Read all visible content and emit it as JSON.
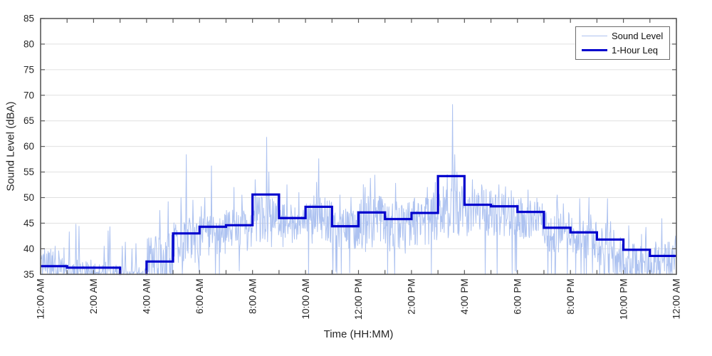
{
  "chart_data": {
    "type": "line",
    "title": "",
    "xlabel": "Time (HH:MM)",
    "ylabel": "Sound Level (dBA)",
    "ylim": [
      35,
      85
    ],
    "y_ticks": [
      35,
      40,
      45,
      50,
      55,
      60,
      65,
      70,
      75,
      80,
      85
    ],
    "xlim_hours": [
      0,
      24
    ],
    "x_tick_hours": [
      0,
      2,
      4,
      6,
      8,
      10,
      12,
      14,
      16,
      18,
      20,
      22,
      24
    ],
    "x_tick_labels": [
      "12:00 AM",
      "2:00 AM",
      "4:00 AM",
      "6:00 AM",
      "8:00 AM",
      "10:00 AM",
      "12:00 PM",
      "2:00 PM",
      "4:00 PM",
      "6:00 PM",
      "8:00 PM",
      "10:00 PM",
      "12:00 AM"
    ],
    "x_minor_tick_every_hours": 1,
    "grid": "horizontal",
    "colors": {
      "grid": "#e0e0e0",
      "axis": "#595959",
      "tick_label": "#262626"
    },
    "legend": {
      "position": "top-right",
      "entries": [
        {
          "label": "Sound Level",
          "color": "#adc2f0",
          "line_width": 1.2
        },
        {
          "label": "1-Hour Leq",
          "color": "#0000cd",
          "line_width": 3.2
        }
      ]
    },
    "series": [
      {
        "name": "Sound Level",
        "kind": "noisy_minute_samples",
        "color": "#adc2f0",
        "width": 1,
        "sample_interval_minutes": 1,
        "hourly_envelope_lo_hi_quietfrac": [
          [
            35.5,
            40.0,
            0.38
          ],
          [
            35.3,
            37.5,
            0.68
          ],
          [
            35.3,
            37.5,
            0.7
          ],
          [
            35.2,
            36.5,
            0.8
          ],
          [
            35.8,
            43.0,
            0.3
          ],
          [
            37.0,
            46.0,
            0.08
          ],
          [
            38.5,
            46.5,
            0.04
          ],
          [
            39.5,
            47.5,
            0.03
          ],
          [
            40.0,
            50.5,
            0.03
          ],
          [
            40.0,
            49.0,
            0.03
          ],
          [
            41.0,
            50.0,
            0.02
          ],
          [
            39.5,
            48.0,
            0.04
          ],
          [
            40.0,
            50.5,
            0.03
          ],
          [
            39.0,
            49.5,
            0.04
          ],
          [
            40.5,
            50.0,
            0.03
          ],
          [
            42.0,
            52.5,
            0.02
          ],
          [
            42.0,
            52.0,
            0.02
          ],
          [
            42.5,
            51.5,
            0.02
          ],
          [
            41.5,
            50.0,
            0.03
          ],
          [
            39.0,
            47.5,
            0.05
          ],
          [
            38.0,
            46.0,
            0.08
          ],
          [
            36.5,
            44.0,
            0.18
          ],
          [
            35.0,
            41.5,
            0.45
          ],
          [
            35.5,
            41.5,
            0.3
          ]
        ],
        "notable_spikes_hour_dba": [
          [
            0.55,
            40.5
          ],
          [
            1.09,
            43.3
          ],
          [
            1.33,
            44.8
          ],
          [
            1.45,
            44.4
          ],
          [
            2.4,
            40.5
          ],
          [
            2.55,
            43.5
          ],
          [
            2.62,
            44.3
          ],
          [
            3.08,
            40.5
          ],
          [
            3.2,
            41.3
          ],
          [
            3.45,
            40.0
          ],
          [
            3.6,
            41.0
          ],
          [
            4.5,
            47.5
          ],
          [
            4.82,
            49.2
          ],
          [
            5.3,
            50.0
          ],
          [
            5.5,
            58.4
          ],
          [
            5.75,
            49.5
          ],
          [
            6.2,
            50.0
          ],
          [
            6.45,
            56.2
          ],
          [
            7.3,
            52.0
          ],
          [
            7.6,
            50.5
          ],
          [
            8.1,
            53.5
          ],
          [
            8.54,
            61.8
          ],
          [
            8.62,
            55.0
          ],
          [
            9.3,
            52.5
          ],
          [
            9.75,
            51.0
          ],
          [
            10.42,
            53.0
          ],
          [
            10.5,
            57.6
          ],
          [
            11.3,
            50.5
          ],
          [
            12.25,
            52.0
          ],
          [
            12.45,
            53.8
          ],
          [
            12.62,
            54.4
          ],
          [
            13.4,
            52.8
          ],
          [
            14.6,
            52.0
          ],
          [
            14.9,
            53.0
          ],
          [
            15.35,
            54.5
          ],
          [
            15.55,
            68.2
          ],
          [
            15.63,
            58.4
          ],
          [
            15.72,
            55.0
          ],
          [
            16.3,
            53.5
          ],
          [
            16.65,
            52.5
          ],
          [
            17.3,
            52.5
          ],
          [
            18.4,
            51.5
          ],
          [
            19.5,
            50.5
          ],
          [
            20.35,
            49.8
          ],
          [
            20.7,
            50.0
          ],
          [
            21.4,
            49.8
          ],
          [
            22.2,
            44.5
          ],
          [
            22.85,
            44.2
          ],
          [
            23.45,
            45.9
          ],
          [
            23.97,
            42.5
          ]
        ]
      },
      {
        "name": "1-Hour Leq",
        "kind": "hourly_step",
        "color": "#0000cd",
        "width": 3.2,
        "hours": [
          0,
          1,
          2,
          3,
          4,
          5,
          6,
          7,
          8,
          9,
          10,
          11,
          12,
          13,
          14,
          15,
          16,
          17,
          18,
          19,
          20,
          21,
          22,
          23
        ],
        "values": [
          36.6,
          36.3,
          36.3,
          34.5,
          37.5,
          43.0,
          44.3,
          44.6,
          50.6,
          46.0,
          48.2,
          44.4,
          47.1,
          45.8,
          47.0,
          54.2,
          48.6,
          48.3,
          47.2,
          44.1,
          43.2,
          41.8,
          39.8,
          38.6
        ],
        "note": "hour 3 (3:00-4:00 AM) value falls below the 35 dBA axis minimum and is clipped by the plot box"
      }
    ]
  }
}
